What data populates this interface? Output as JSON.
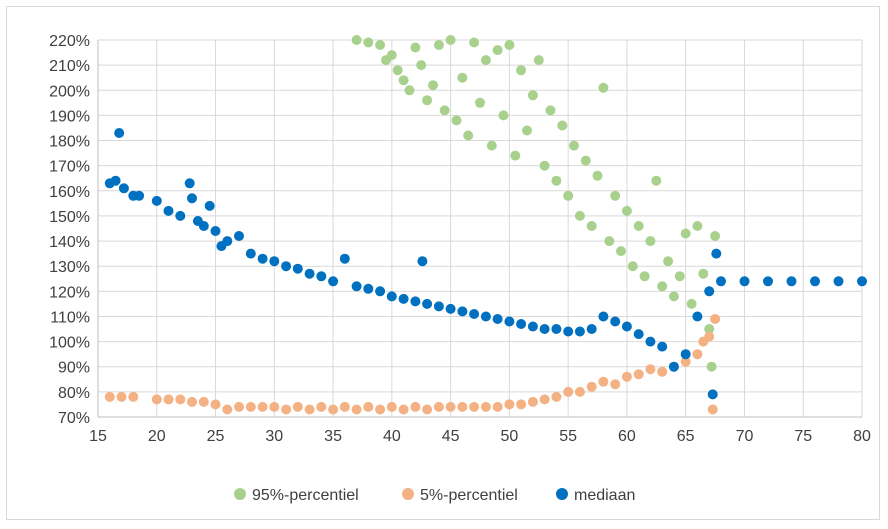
{
  "chart_data": {
    "type": "scatter",
    "title": "",
    "xlabel": "",
    "ylabel": "",
    "xlim": [
      15,
      80
    ],
    "ylim": [
      0.7,
      2.2
    ],
    "x_ticks": [
      15,
      20,
      25,
      30,
      35,
      40,
      45,
      50,
      55,
      60,
      65,
      70,
      75,
      80
    ],
    "x_tick_labels": [
      "15",
      "20",
      "25",
      "30",
      "35",
      "40",
      "45",
      "50",
      "55",
      "60",
      "65",
      "70",
      "75",
      "80"
    ],
    "y_ticks": [
      0.7,
      0.8,
      0.9,
      1.0,
      1.1,
      1.2,
      1.3,
      1.4,
      1.5,
      1.6,
      1.7,
      1.8,
      1.9,
      2.0,
      2.1,
      2.2
    ],
    "y_tick_labels": [
      "70%",
      "80%",
      "90%",
      "100%",
      "110%",
      "120%",
      "130%",
      "140%",
      "150%",
      "160%",
      "170%",
      "180%",
      "190%",
      "200%",
      "210%",
      "220%"
    ],
    "grid": true,
    "legend_position": "bottom",
    "series": [
      {
        "name": "95%-percentiel",
        "color": "#a9d18e",
        "points": [
          [
            37.0,
            2.2
          ],
          [
            38.0,
            2.19
          ],
          [
            39.0,
            2.18
          ],
          [
            39.5,
            2.12
          ],
          [
            40.0,
            2.14
          ],
          [
            40.5,
            2.08
          ],
          [
            41.0,
            2.04
          ],
          [
            41.5,
            2.0
          ],
          [
            42.0,
            2.17
          ],
          [
            42.5,
            2.1
          ],
          [
            43.0,
            1.96
          ],
          [
            43.5,
            2.02
          ],
          [
            44.0,
            2.18
          ],
          [
            44.5,
            1.92
          ],
          [
            45.0,
            2.2
          ],
          [
            45.5,
            1.88
          ],
          [
            46.0,
            2.05
          ],
          [
            46.5,
            1.82
          ],
          [
            47.0,
            2.19
          ],
          [
            47.5,
            1.95
          ],
          [
            48.0,
            2.12
          ],
          [
            48.5,
            1.78
          ],
          [
            49.0,
            2.16
          ],
          [
            49.5,
            1.9
          ],
          [
            50.0,
            2.18
          ],
          [
            50.5,
            1.74
          ],
          [
            51.0,
            2.08
          ],
          [
            51.5,
            1.84
          ],
          [
            52.0,
            1.98
          ],
          [
            52.5,
            2.12
          ],
          [
            53.0,
            1.7
          ],
          [
            53.5,
            1.92
          ],
          [
            54.0,
            1.64
          ],
          [
            54.5,
            1.86
          ],
          [
            55.0,
            1.58
          ],
          [
            55.5,
            1.78
          ],
          [
            56.0,
            1.5
          ],
          [
            56.5,
            1.72
          ],
          [
            57.0,
            1.46
          ],
          [
            57.5,
            1.66
          ],
          [
            58.0,
            2.01
          ],
          [
            58.5,
            1.4
          ],
          [
            59.0,
            1.58
          ],
          [
            59.5,
            1.36
          ],
          [
            60.0,
            1.52
          ],
          [
            60.5,
            1.3
          ],
          [
            61.0,
            1.46
          ],
          [
            61.5,
            1.26
          ],
          [
            62.0,
            1.4
          ],
          [
            62.5,
            1.64
          ],
          [
            63.0,
            1.22
          ],
          [
            63.5,
            1.32
          ],
          [
            64.0,
            1.18
          ],
          [
            64.5,
            1.26
          ],
          [
            65.0,
            1.43
          ],
          [
            65.5,
            1.15
          ],
          [
            66.0,
            1.46
          ],
          [
            66.5,
            1.27
          ],
          [
            67.0,
            1.05
          ],
          [
            67.2,
            0.9
          ],
          [
            67.5,
            1.42
          ]
        ]
      },
      {
        "name": "5%-percentiel",
        "color": "#f4b183",
        "points": [
          [
            16.0,
            0.78
          ],
          [
            17.0,
            0.78
          ],
          [
            18.0,
            0.78
          ],
          [
            20.0,
            0.77
          ],
          [
            21.0,
            0.77
          ],
          [
            22.0,
            0.77
          ],
          [
            23.0,
            0.76
          ],
          [
            24.0,
            0.76
          ],
          [
            25.0,
            0.75
          ],
          [
            26.0,
            0.73
          ],
          [
            27.0,
            0.74
          ],
          [
            28.0,
            0.74
          ],
          [
            29.0,
            0.74
          ],
          [
            30.0,
            0.74
          ],
          [
            31.0,
            0.73
          ],
          [
            32.0,
            0.74
          ],
          [
            33.0,
            0.73
          ],
          [
            34.0,
            0.74
          ],
          [
            35.0,
            0.73
          ],
          [
            36.0,
            0.74
          ],
          [
            37.0,
            0.73
          ],
          [
            38.0,
            0.74
          ],
          [
            39.0,
            0.73
          ],
          [
            40.0,
            0.74
          ],
          [
            41.0,
            0.73
          ],
          [
            42.0,
            0.74
          ],
          [
            43.0,
            0.73
          ],
          [
            44.0,
            0.74
          ],
          [
            45.0,
            0.74
          ],
          [
            46.0,
            0.74
          ],
          [
            47.0,
            0.74
          ],
          [
            48.0,
            0.74
          ],
          [
            49.0,
            0.74
          ],
          [
            50.0,
            0.75
          ],
          [
            51.0,
            0.75
          ],
          [
            52.0,
            0.76
          ],
          [
            53.0,
            0.77
          ],
          [
            54.0,
            0.78
          ],
          [
            55.0,
            0.8
          ],
          [
            56.0,
            0.8
          ],
          [
            57.0,
            0.82
          ],
          [
            58.0,
            0.84
          ],
          [
            59.0,
            0.83
          ],
          [
            60.0,
            0.86
          ],
          [
            61.0,
            0.87
          ],
          [
            62.0,
            0.89
          ],
          [
            63.0,
            0.88
          ],
          [
            64.0,
            0.9
          ],
          [
            65.0,
            0.92
          ],
          [
            66.0,
            0.95
          ],
          [
            66.5,
            1.0
          ],
          [
            67.0,
            1.02
          ],
          [
            67.3,
            0.73
          ],
          [
            67.5,
            1.09
          ]
        ]
      },
      {
        "name": "mediaan",
        "color": "#0070c0",
        "points": [
          [
            16.0,
            1.63
          ],
          [
            16.5,
            1.64
          ],
          [
            16.8,
            1.83
          ],
          [
            17.2,
            1.61
          ],
          [
            18.0,
            1.58
          ],
          [
            18.5,
            1.58
          ],
          [
            20.0,
            1.56
          ],
          [
            21.0,
            1.52
          ],
          [
            22.0,
            1.5
          ],
          [
            22.8,
            1.63
          ],
          [
            23.0,
            1.57
          ],
          [
            23.5,
            1.48
          ],
          [
            24.0,
            1.46
          ],
          [
            24.5,
            1.54
          ],
          [
            25.0,
            1.44
          ],
          [
            25.5,
            1.38
          ],
          [
            26.0,
            1.4
          ],
          [
            27.0,
            1.42
          ],
          [
            28.0,
            1.35
          ],
          [
            29.0,
            1.33
          ],
          [
            30.0,
            1.32
          ],
          [
            31.0,
            1.3
          ],
          [
            32.0,
            1.29
          ],
          [
            33.0,
            1.27
          ],
          [
            34.0,
            1.26
          ],
          [
            35.0,
            1.24
          ],
          [
            36.0,
            1.33
          ],
          [
            37.0,
            1.22
          ],
          [
            38.0,
            1.21
          ],
          [
            39.0,
            1.2
          ],
          [
            40.0,
            1.18
          ],
          [
            41.0,
            1.17
          ],
          [
            42.0,
            1.16
          ],
          [
            42.6,
            1.32
          ],
          [
            43.0,
            1.15
          ],
          [
            44.0,
            1.14
          ],
          [
            45.0,
            1.13
          ],
          [
            46.0,
            1.12
          ],
          [
            47.0,
            1.11
          ],
          [
            48.0,
            1.1
          ],
          [
            49.0,
            1.09
          ],
          [
            50.0,
            1.08
          ],
          [
            51.0,
            1.07
          ],
          [
            52.0,
            1.06
          ],
          [
            53.0,
            1.05
          ],
          [
            54.0,
            1.05
          ],
          [
            55.0,
            1.04
          ],
          [
            56.0,
            1.04
          ],
          [
            57.0,
            1.05
          ],
          [
            58.0,
            1.1
          ],
          [
            59.0,
            1.08
          ],
          [
            60.0,
            1.06
          ],
          [
            61.0,
            1.03
          ],
          [
            62.0,
            1.0
          ],
          [
            63.0,
            0.98
          ],
          [
            64.0,
            0.9
          ],
          [
            65.0,
            0.95
          ],
          [
            66.0,
            1.1
          ],
          [
            67.0,
            1.2
          ],
          [
            67.3,
            0.79
          ],
          [
            67.6,
            1.35
          ],
          [
            68.0,
            1.24
          ],
          [
            70.0,
            1.24
          ],
          [
            72.0,
            1.24
          ],
          [
            74.0,
            1.24
          ],
          [
            76.0,
            1.24
          ],
          [
            78.0,
            1.24
          ],
          [
            80.0,
            1.24
          ]
        ]
      }
    ]
  }
}
